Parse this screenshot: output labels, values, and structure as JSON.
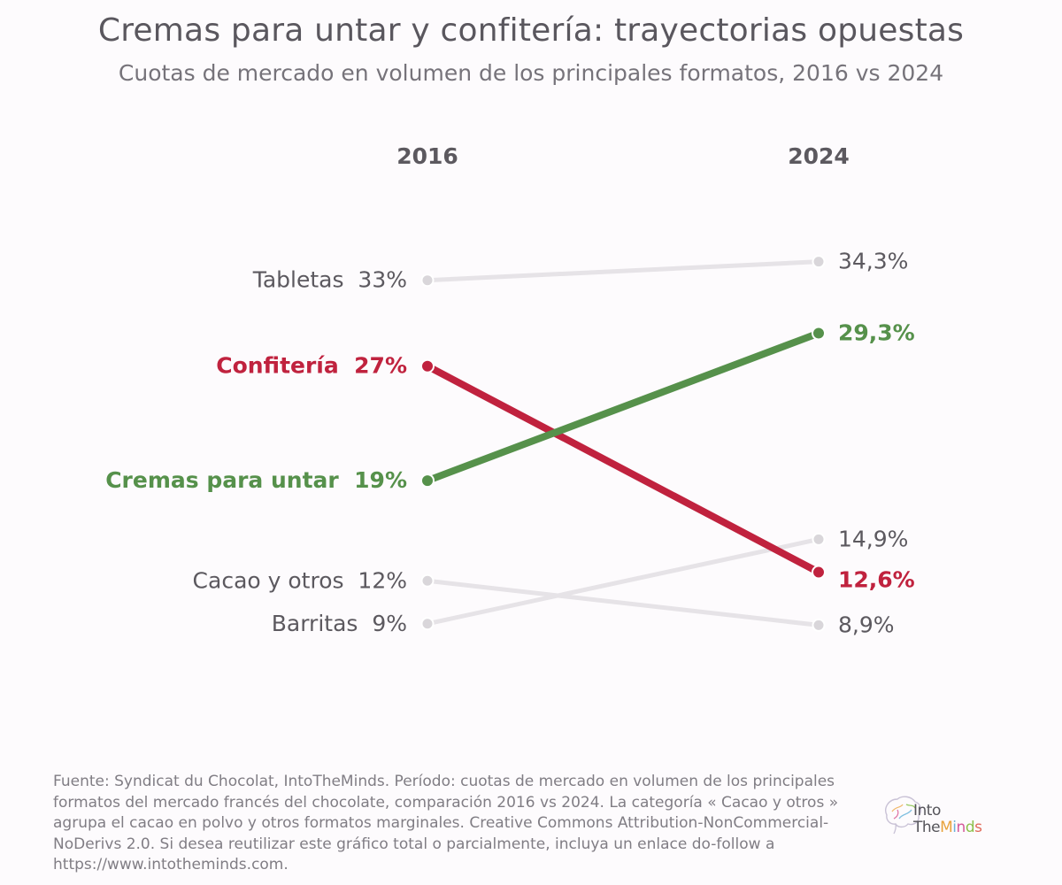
{
  "title": "Cremas para untar y confitería: trayectorias opuestas",
  "subtitle": "Cuotas de mercado en volumen de los principales formatos, 2016 vs 2024",
  "footer": "Fuente: Syndicat du Chocolat, IntoTheMinds. Período: cuotas de mercado en volumen de los principales formatos del mercado francés del chocolate, comparación 2016 vs 2024. La categoría « Cacao y otros » agrupa el cacao en polvo y otros formatos marginales. Creative Commons Attribution-NonCommercial-NoDerivs 2.0. Si desea reutilizar este gráfico total o parcialmente, incluya un enlace do-follow a https://www.intotheminds.com.",
  "logo": {
    "line1": "Into",
    "line2_a": "The",
    "line2_b": "Minds"
  },
  "chart_data": {
    "type": "line",
    "subtype": "slope",
    "x": [
      "2016",
      "2024"
    ],
    "unit": "%",
    "series": [
      {
        "name": "Tabletas",
        "values": [
          33,
          34.3
        ],
        "labels": [
          "33%",
          "34,3%"
        ],
        "color": "#e6e3e7",
        "dot_color": "#d9d6da",
        "text_color": "#5c595f",
        "highlight": false
      },
      {
        "name": "Confitería",
        "values": [
          27,
          12.6
        ],
        "labels": [
          "27%",
          "12,6%"
        ],
        "color": "#c0223e",
        "dot_color": "#c0223e",
        "text_color": "#c0223e",
        "highlight": true
      },
      {
        "name": "Cremas para untar",
        "values": [
          19,
          29.3
        ],
        "labels": [
          "19%",
          "29,3%"
        ],
        "color": "#56914b",
        "dot_color": "#56914b",
        "text_color": "#56914b",
        "highlight": true
      },
      {
        "name": "Cacao y otros",
        "values": [
          12,
          8.9
        ],
        "labels": [
          "12%",
          "8,9%"
        ],
        "color": "#e6e3e7",
        "dot_color": "#d9d6da",
        "text_color": "#5c595f",
        "highlight": false
      },
      {
        "name": "Barritas",
        "values": [
          9,
          14.9
        ],
        "labels": [
          "9%",
          "14,9%"
        ],
        "color": "#e6e3e7",
        "dot_color": "#d9d6da",
        "text_color": "#5c595f",
        "highlight": false
      }
    ],
    "header_color": "#5c595f"
  }
}
